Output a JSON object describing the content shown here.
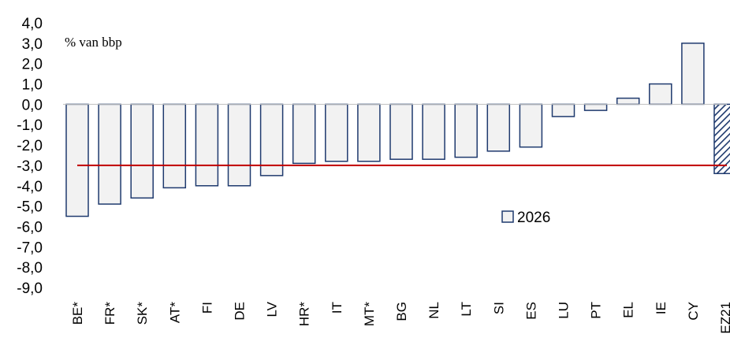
{
  "chart_data": {
    "type": "bar",
    "unit_label": "% van bbp",
    "categories": [
      "BE*",
      "FR*",
      "SK*",
      "AT*",
      "FI",
      "DE",
      "LV",
      "HR*",
      "IT",
      "MT*",
      "BG",
      "NL",
      "LT",
      "SI",
      "ES",
      "LU",
      "PT",
      "EL",
      "IE",
      "CY",
      "EZ21"
    ],
    "series": [
      {
        "name": "2026",
        "values": [
          -5.5,
          -4.9,
          -4.6,
          -4.1,
          -4.0,
          -4.0,
          -3.5,
          -2.9,
          -2.8,
          -2.8,
          -2.7,
          -2.7,
          -2.6,
          -2.3,
          -2.1,
          -0.6,
          -0.3,
          0.3,
          1.0,
          3.0,
          -3.4
        ],
        "fill": "#f2f2f2",
        "stroke": "#1f3a6e"
      }
    ],
    "highlight": {
      "category": "EZ21",
      "pattern": "diagonal-hatch",
      "color": "#1f3a6e"
    },
    "reference_line": {
      "value": -3.0,
      "color": "#c00000"
    },
    "ylim": [
      -9.0,
      4.0
    ],
    "yticks": [
      "4,0",
      "3,0",
      "2,0",
      "1,0",
      "0,0",
      "-1,0",
      "-2,0",
      "-3,0",
      "-4,0",
      "-5,0",
      "-6,0",
      "-7,0",
      "-8,0",
      "-9,0"
    ],
    "ytick_values": [
      4,
      3,
      2,
      1,
      0,
      -1,
      -2,
      -3,
      -4,
      -5,
      -6,
      -7,
      -8,
      -9
    ],
    "legend": {
      "label": "2026",
      "placement": "lower-right"
    },
    "grid": false,
    "xlabel": "",
    "ylabel": ""
  }
}
